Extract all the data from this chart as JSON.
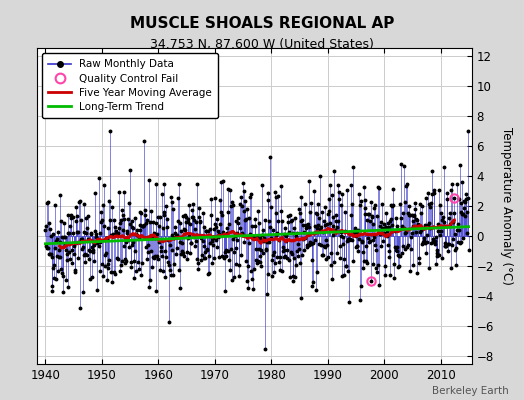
{
  "title": "MUSCLE SHOALS REGIONAL AP",
  "subtitle": "34.753 N, 87.600 W (United States)",
  "ylabel": "Temperature Anomaly (°C)",
  "credit": "Berkeley Earth",
  "xlim": [
    1938.5,
    2015.5
  ],
  "ylim": [
    -8.5,
    12.5
  ],
  "yticks": [
    -8,
    -6,
    -4,
    -2,
    0,
    2,
    4,
    6,
    8,
    10,
    12
  ],
  "xticks": [
    1940,
    1950,
    1960,
    1970,
    1980,
    1990,
    2000,
    2010
  ],
  "bg_color": "#d8d8d8",
  "plot_bg_color": "#ffffff",
  "raw_line_color": "#3333cc",
  "raw_dot_color": "#000000",
  "qc_fail_color": "#ff44aa",
  "moving_avg_color": "#cc0000",
  "trend_color": "#00bb00",
  "grid_color": "#cccccc",
  "seed": 42,
  "start_year": 1940,
  "end_year": 2014,
  "qc_times": [
    1997.75,
    2012.5
  ],
  "qc_values": [
    -3.0,
    2.5
  ]
}
